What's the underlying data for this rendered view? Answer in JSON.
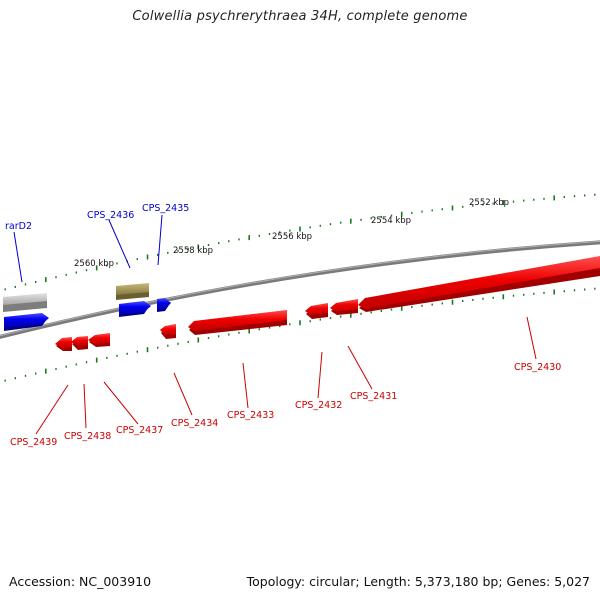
{
  "title": "Colwellia psychrerythraea 34H, complete genome",
  "footer": {
    "accession": "Accession: NC_003910",
    "topology": "Topology: circular; Length: 5,373,180 bp; Genes: 5,027"
  },
  "colors": {
    "plus_strand": "#0000ee",
    "minus_strand": "#ee0000",
    "backbone": "#808080",
    "tick": "#1a7a1a",
    "gray_feature": "#c0c0c0",
    "olive_feature": "#a89a55"
  },
  "scale_labels": [
    "2552 kbp",
    "2554 kbp",
    "2556 kbp",
    "2558 kbp",
    "2560 kbp"
  ],
  "labels": {
    "rarD2": "rarD2",
    "CPS_2436": "CPS_2436",
    "CPS_2435": "CPS_2435",
    "CPS_2439": "CPS_2439",
    "CPS_2438": "CPS_2438",
    "CPS_2437": "CPS_2437",
    "CPS_2434": "CPS_2434",
    "CPS_2433": "CPS_2433",
    "CPS_2432": "CPS_2432",
    "CPS_2431": "CPS_2431",
    "CPS_2430": "CPS_2430"
  }
}
